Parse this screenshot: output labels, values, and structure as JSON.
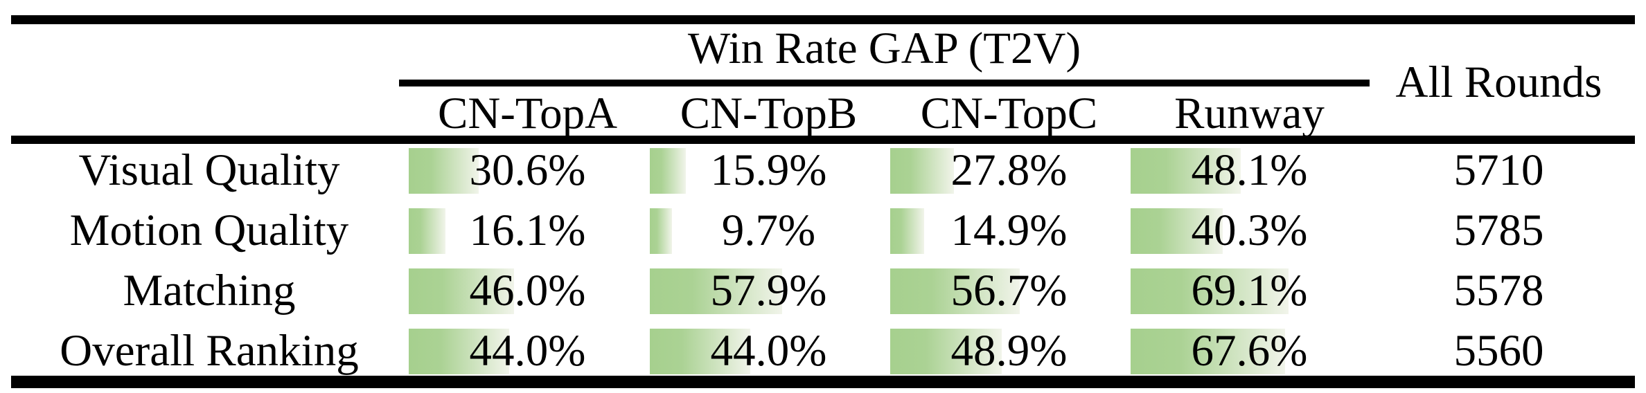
{
  "colors": {
    "background": "#ffffff",
    "rule_black": "#000000",
    "text_black": "#000000",
    "bar_gradient_left": "#a6d08e",
    "bar_gradient_right": "#f1f4ea"
  },
  "table": {
    "group_header": "Win Rate GAP (T2V)",
    "all_rounds_header": "All Rounds",
    "columns": [
      "CN-TopA",
      "CN-TopB",
      "CN-TopC",
      "Runway"
    ],
    "rows": [
      {
        "label": "Visual Quality",
        "win_rate_gap": [
          30.6,
          15.9,
          27.8,
          48.1
        ],
        "all_rounds": "5710"
      },
      {
        "label": "Motion Quality",
        "win_rate_gap": [
          16.1,
          9.7,
          14.9,
          40.3
        ],
        "all_rounds": "5785"
      },
      {
        "label": "Matching",
        "win_rate_gap": [
          46.0,
          57.9,
          56.7,
          69.1
        ],
        "all_rounds": "5578"
      },
      {
        "label": "Overall Ranking",
        "win_rate_gap": [
          44.0,
          44.0,
          48.9,
          67.6
        ],
        "all_rounds": "5560"
      }
    ]
  },
  "chart_data": {
    "type": "table",
    "title": "Win Rate GAP (T2V)",
    "categories": [
      "Visual Quality",
      "Motion Quality",
      "Matching",
      "Overall Ranking"
    ],
    "series": [
      {
        "name": "CN-TopA",
        "values": [
          30.6,
          16.1,
          46.0,
          44.0
        ]
      },
      {
        "name": "CN-TopB",
        "values": [
          15.9,
          9.7,
          57.9,
          44.0
        ]
      },
      {
        "name": "CN-TopC",
        "values": [
          27.8,
          14.9,
          56.7,
          48.9
        ]
      },
      {
        "name": "Runway",
        "values": [
          48.1,
          40.3,
          69.1,
          67.6
        ]
      }
    ],
    "extra_column": {
      "name": "All Rounds",
      "values": [
        5710,
        5785,
        5578,
        5560
      ]
    },
    "unit": "%",
    "value_axis_range": [
      0,
      100
    ],
    "bar_style": "in-cell horizontal data bars, green fading to white, width proportional to percent"
  }
}
